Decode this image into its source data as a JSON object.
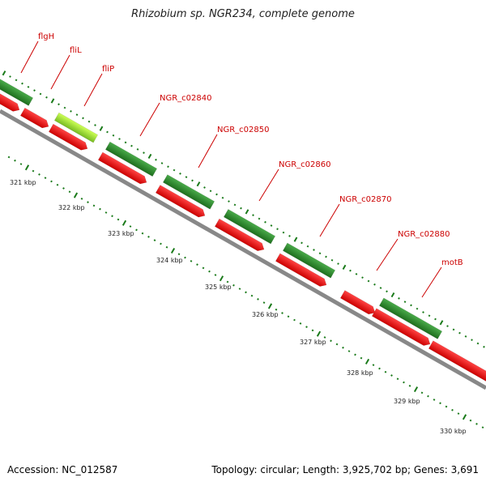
{
  "title": "Rhizobium sp. NGR234, complete genome",
  "footer": {
    "accession": "Accession: NC_012587",
    "topology": "Topology: circular; Length: 3,925,702 bp; Genes: 3,691"
  },
  "ruler_labels": [
    "321 kbp",
    "322 kbp",
    "323 kbp",
    "324 kbp",
    "325 kbp",
    "326 kbp",
    "327 kbp",
    "328 kbp",
    "329 kbp",
    "330 kbp"
  ],
  "gene_labels": [
    "flgH",
    "fliL",
    "fliP",
    "NGR_c02840",
    "NGR_c02850",
    "NGR_c02860",
    "NGR_c02870",
    "NGR_c02880",
    "motB"
  ],
  "colors": {
    "gene_green": "#2e8b2e",
    "gene_lightgreen": "#99dd33",
    "gene_red": "#ee1111",
    "label_red": "#cc0000",
    "backbone": "#888888",
    "tick_green": "#1a7a1a"
  }
}
